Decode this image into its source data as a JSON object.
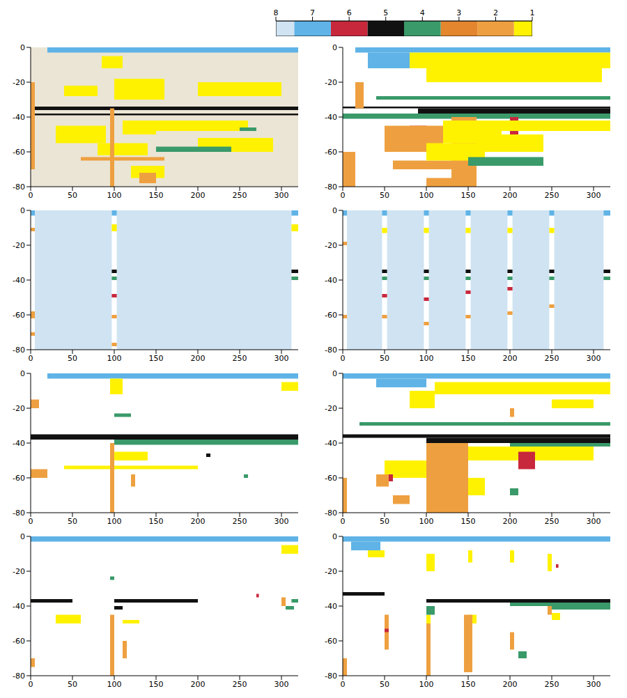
{
  "chart_data": [
    {
      "type": "heatmap",
      "color": "#ebe5d5",
      "xlim": [
        0,
        320
      ],
      "xticks": [
        0,
        50,
        100,
        150,
        200,
        250,
        300
      ],
      "ylim": [
        -80,
        0
      ],
      "yticks": [
        0,
        -20,
        -40,
        -60,
        -80
      ],
      "cells": [
        [
          20,
          320,
          -3,
          0,
          7
        ],
        [
          0,
          320,
          -36,
          -34,
          5
        ],
        [
          0,
          320,
          -39,
          -38,
          5
        ],
        [
          85,
          110,
          -12,
          -5,
          1
        ],
        [
          100,
          160,
          -30,
          -18,
          1
        ],
        [
          200,
          300,
          -28,
          -20,
          1
        ],
        [
          40,
          80,
          -28,
          -22,
          1
        ],
        [
          110,
          150,
          -50,
          -42,
          1
        ],
        [
          150,
          260,
          -48,
          -42,
          1
        ],
        [
          30,
          90,
          -55,
          -45,
          1
        ],
        [
          80,
          140,
          -62,
          -55,
          1
        ],
        [
          200,
          290,
          -60,
          -52,
          1
        ],
        [
          120,
          160,
          -75,
          -68,
          1
        ],
        [
          0,
          5,
          -70,
          -20,
          2
        ],
        [
          95,
          100,
          -80,
          -35,
          2
        ],
        [
          60,
          160,
          -65,
          -63,
          2
        ],
        [
          130,
          150,
          -78,
          -72,
          2
        ],
        [
          150,
          240,
          -60,
          -57,
          4
        ],
        [
          250,
          270,
          -48,
          -46,
          4
        ]
      ]
    },
    {
      "type": "heatmap",
      "xlim": [
        0,
        320
      ],
      "xticks": [
        0,
        50,
        100,
        150,
        200,
        250,
        300
      ],
      "ylim": [
        -80,
        0
      ],
      "yticks": [
        0,
        -20,
        -40,
        -60,
        -80
      ],
      "cells": [
        [
          15,
          320,
          -3,
          0,
          7
        ],
        [
          30,
          80,
          -12,
          -3,
          7
        ],
        [
          80,
          320,
          -12,
          -3,
          1
        ],
        [
          100,
          310,
          -20,
          -12,
          1
        ],
        [
          40,
          320,
          -30,
          -28,
          4
        ],
        [
          0,
          320,
          -41,
          -38,
          4
        ],
        [
          0,
          320,
          -35,
          -34,
          5
        ],
        [
          90,
          320,
          -38,
          -35,
          5
        ],
        [
          80,
          100,
          -50,
          -45,
          6
        ],
        [
          200,
          210,
          -52,
          -40,
          6
        ],
        [
          130,
          140,
          -70,
          -66,
          6
        ],
        [
          0,
          15,
          -80,
          -60,
          2
        ],
        [
          15,
          25,
          -35,
          -20,
          2
        ],
        [
          50,
          120,
          -60,
          -45,
          2
        ],
        [
          130,
          160,
          -80,
          -40,
          2
        ],
        [
          60,
          150,
          -70,
          -65,
          2
        ],
        [
          100,
          150,
          -80,
          -75,
          2
        ],
        [
          120,
          190,
          -55,
          -42,
          1
        ],
        [
          150,
          320,
          -48,
          -42,
          1
        ],
        [
          160,
          240,
          -60,
          -50,
          1
        ],
        [
          100,
          170,
          -65,
          -55,
          1
        ],
        [
          150,
          240,
          -68,
          -63,
          4
        ]
      ]
    },
    {
      "type": "heatmap",
      "xlim": [
        0,
        320
      ],
      "xticks": [
        0,
        50,
        100,
        150,
        200,
        250,
        300
      ],
      "ylim": [
        -80,
        0
      ],
      "yticks": [
        0,
        -20,
        -40,
        -60,
        -80
      ],
      "cells": [
        [
          5,
          97,
          -80,
          0,
          8
        ],
        [
          103,
          312,
          -80,
          0,
          8
        ],
        [
          97,
          103,
          -3,
          0,
          7
        ],
        [
          97,
          103,
          -12,
          -8,
          1
        ],
        [
          97,
          103,
          -36,
          -34,
          5
        ],
        [
          97,
          103,
          -40,
          -38,
          4
        ],
        [
          97,
          103,
          -50,
          -48,
          6
        ],
        [
          97,
          103,
          -62,
          -60,
          2
        ],
        [
          97,
          103,
          -78,
          -76,
          2
        ],
        [
          0,
          5,
          -3,
          0,
          7
        ],
        [
          0,
          5,
          -12,
          -10,
          2
        ],
        [
          0,
          5,
          -62,
          -58,
          2
        ],
        [
          0,
          5,
          -72,
          -70,
          2
        ],
        [
          312,
          320,
          -3,
          0,
          7
        ],
        [
          312,
          320,
          -12,
          -8,
          1
        ],
        [
          312,
          320,
          -36,
          -34,
          5
        ],
        [
          312,
          320,
          -40,
          -38,
          4
        ]
      ]
    },
    {
      "type": "heatmap",
      "xlim": [
        0,
        320
      ],
      "xticks": [
        0,
        50,
        100,
        150,
        200,
        250,
        300
      ],
      "ylim": [
        -80,
        0
      ],
      "yticks": [
        0,
        -20,
        -40,
        -60,
        -80
      ],
      "cells": [
        [
          5,
          47,
          -80,
          0,
          8
        ],
        [
          53,
          97,
          -80,
          0,
          8
        ],
        [
          103,
          147,
          -80,
          0,
          8
        ],
        [
          153,
          197,
          -80,
          0,
          8
        ],
        [
          203,
          247,
          -80,
          0,
          8
        ],
        [
          253,
          312,
          -80,
          0,
          8
        ],
        [
          47,
          53,
          -3,
          0,
          7
        ],
        [
          47,
          53,
          -13,
          -10,
          1
        ],
        [
          47,
          53,
          -36,
          -34,
          5
        ],
        [
          47,
          53,
          -40,
          -38,
          4
        ],
        [
          47,
          53,
          -50,
          -48,
          6
        ],
        [
          47,
          53,
          -62,
          -60,
          2
        ],
        [
          97,
          103,
          -3,
          0,
          7
        ],
        [
          97,
          103,
          -13,
          -10,
          1
        ],
        [
          97,
          103,
          -36,
          -34,
          5
        ],
        [
          97,
          103,
          -40,
          -38,
          4
        ],
        [
          97,
          103,
          -52,
          -50,
          6
        ],
        [
          97,
          103,
          -66,
          -64,
          2
        ],
        [
          147,
          153,
          -3,
          0,
          7
        ],
        [
          147,
          153,
          -13,
          -10,
          1
        ],
        [
          147,
          153,
          -36,
          -34,
          5
        ],
        [
          147,
          153,
          -40,
          -38,
          4
        ],
        [
          147,
          153,
          -48,
          -46,
          6
        ],
        [
          147,
          153,
          -62,
          -60,
          2
        ],
        [
          197,
          203,
          -3,
          0,
          7
        ],
        [
          197,
          203,
          -13,
          -10,
          1
        ],
        [
          197,
          203,
          -36,
          -34,
          5
        ],
        [
          197,
          203,
          -40,
          -38,
          4
        ],
        [
          197,
          203,
          -46,
          -44,
          6
        ],
        [
          197,
          203,
          -60,
          -58,
          2
        ],
        [
          247,
          253,
          -3,
          0,
          7
        ],
        [
          247,
          253,
          -13,
          -10,
          1
        ],
        [
          247,
          253,
          -36,
          -34,
          5
        ],
        [
          247,
          253,
          -40,
          -38,
          4
        ],
        [
          247,
          253,
          -56,
          -54,
          2
        ],
        [
          0,
          5,
          -3,
          0,
          7
        ],
        [
          0,
          5,
          -20,
          -18,
          2
        ],
        [
          0,
          5,
          -62,
          -60,
          2
        ],
        [
          312,
          320,
          -3,
          0,
          7
        ],
        [
          312,
          320,
          -36,
          -34,
          5
        ],
        [
          312,
          320,
          -40,
          -38,
          4
        ]
      ]
    },
    {
      "type": "heatmap",
      "xlim": [
        0,
        320
      ],
      "xticks": [
        0,
        50,
        100,
        150,
        200,
        250,
        300
      ],
      "ylim": [
        -80,
        0
      ],
      "yticks": [
        0,
        -20,
        -40,
        -60,
        -80
      ],
      "cells": [
        [
          20,
          320,
          -3,
          0,
          7
        ],
        [
          0,
          320,
          -38,
          -35,
          5
        ],
        [
          100,
          320,
          -41,
          -38,
          4
        ],
        [
          95,
          110,
          -12,
          -3,
          1
        ],
        [
          300,
          320,
          -10,
          -5,
          1
        ],
        [
          40,
          200,
          -55,
          -53,
          1
        ],
        [
          100,
          140,
          -50,
          -45,
          1
        ],
        [
          0,
          10,
          -20,
          -15,
          2
        ],
        [
          95,
          100,
          -80,
          -40,
          2
        ],
        [
          0,
          20,
          -60,
          -55,
          2
        ],
        [
          120,
          125,
          -65,
          -58,
          2
        ],
        [
          100,
          120,
          -25,
          -23,
          4
        ],
        [
          210,
          215,
          -48,
          -46,
          5
        ],
        [
          255,
          260,
          -60,
          -58,
          4
        ]
      ]
    },
    {
      "type": "heatmap",
      "xlim": [
        0,
        320
      ],
      "xticks": [
        0,
        50,
        100,
        150,
        200,
        250,
        300
      ],
      "ylim": [
        -80,
        0
      ],
      "yticks": [
        0,
        -20,
        -40,
        -60,
        -80
      ],
      "cells": [
        [
          0,
          320,
          -3,
          0,
          7
        ],
        [
          40,
          100,
          -8,
          -3,
          7
        ],
        [
          110,
          320,
          -12,
          -5,
          1
        ],
        [
          250,
          300,
          -20,
          -15,
          1
        ],
        [
          80,
          110,
          -20,
          -10,
          1
        ],
        [
          20,
          320,
          -30,
          -28,
          4
        ],
        [
          0,
          320,
          -37,
          -35,
          5
        ],
        [
          100,
          320,
          -40,
          -37,
          5
        ],
        [
          200,
          320,
          -42,
          -40,
          4
        ],
        [
          100,
          300,
          -50,
          -42,
          1
        ],
        [
          50,
          150,
          -60,
          -50,
          1
        ],
        [
          110,
          170,
          -70,
          -60,
          1
        ],
        [
          210,
          230,
          -55,
          -45,
          6
        ],
        [
          50,
          60,
          -62,
          -58,
          6
        ],
        [
          100,
          150,
          -80,
          -40,
          2
        ],
        [
          40,
          55,
          -65,
          -58,
          2
        ],
        [
          60,
          80,
          -75,
          -70,
          2
        ],
        [
          0,
          5,
          -80,
          -60,
          2
        ],
        [
          200,
          205,
          -25,
          -20,
          2
        ],
        [
          200,
          210,
          -70,
          -66,
          4
        ]
      ]
    },
    {
      "type": "heatmap",
      "xlim": [
        0,
        320
      ],
      "xticks": [
        0,
        50,
        100,
        150,
        200,
        250,
        300
      ],
      "ylim": [
        -80,
        0
      ],
      "yticks": [
        0,
        -20,
        -40,
        -60,
        -80
      ],
      "cells": [
        [
          0,
          320,
          -3,
          0,
          7
        ],
        [
          30,
          60,
          -50,
          -45,
          1
        ],
        [
          300,
          320,
          -10,
          -5,
          1
        ],
        [
          0,
          50,
          -38,
          -36,
          5
        ],
        [
          100,
          200,
          -38,
          -36,
          5
        ],
        [
          100,
          110,
          -42,
          -40,
          5
        ],
        [
          95,
          100,
          -25,
          -23,
          4
        ],
        [
          95,
          100,
          -80,
          -45,
          2
        ],
        [
          110,
          115,
          -70,
          -60,
          2
        ],
        [
          300,
          305,
          -40,
          -35,
          2
        ],
        [
          270,
          273,
          -35,
          -33,
          6
        ],
        [
          312,
          320,
          -38,
          -36,
          4
        ],
        [
          305,
          315,
          -42,
          -40,
          4
        ],
        [
          110,
          130,
          -50,
          -48,
          1
        ],
        [
          0,
          5,
          -75,
          -70,
          2
        ]
      ]
    },
    {
      "type": "heatmap",
      "xlim": [
        0,
        320
      ],
      "xticks": [
        0,
        50,
        100,
        150,
        200,
        250,
        300
      ],
      "ylim": [
        -80,
        0
      ],
      "yticks": [
        0,
        -20,
        -40,
        -60,
        -80
      ],
      "cells": [
        [
          0,
          320,
          -3,
          0,
          7
        ],
        [
          10,
          45,
          -8,
          -3,
          7
        ],
        [
          0,
          50,
          -34,
          -32,
          5
        ],
        [
          100,
          320,
          -38,
          -36,
          5
        ],
        [
          200,
          320,
          -40,
          -38,
          4
        ],
        [
          250,
          320,
          -42,
          -40,
          4
        ],
        [
          30,
          50,
          -12,
          -8,
          1
        ],
        [
          100,
          110,
          -20,
          -10,
          1
        ],
        [
          150,
          155,
          -15,
          -8,
          1
        ],
        [
          200,
          205,
          -15,
          -8,
          1
        ],
        [
          245,
          250,
          -20,
          -10,
          1
        ],
        [
          150,
          160,
          -50,
          -45,
          1
        ],
        [
          250,
          260,
          -48,
          -44,
          1
        ],
        [
          100,
          105,
          -50,
          -45,
          1
        ],
        [
          50,
          55,
          -65,
          -45,
          2
        ],
        [
          100,
          105,
          -80,
          -50,
          2
        ],
        [
          145,
          155,
          -78,
          -45,
          2
        ],
        [
          200,
          205,
          -65,
          -55,
          2
        ],
        [
          245,
          250,
          -45,
          -40,
          2
        ],
        [
          0,
          5,
          -80,
          -70,
          2
        ],
        [
          50,
          55,
          -55,
          -53,
          6
        ],
        [
          255,
          258,
          -18,
          -16,
          6
        ],
        [
          210,
          220,
          -70,
          -66,
          4
        ],
        [
          100,
          110,
          -45,
          -40,
          4
        ]
      ]
    }
  ],
  "colorbar": {
    "range": [
      1,
      8
    ],
    "ticks": [
      1,
      2,
      3,
      4,
      5,
      6,
      7,
      8
    ],
    "colors": [
      "#fff200",
      "#eea040",
      "#e3862e",
      "#3a9a6a",
      "#111111",
      "#c8283c",
      "#5fb3e6",
      "#cfe3f2"
    ]
  }
}
